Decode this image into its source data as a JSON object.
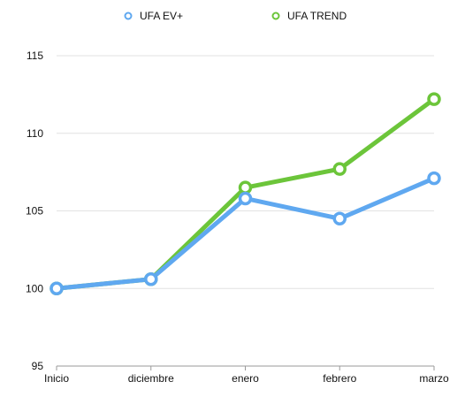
{
  "chart_data": {
    "type": "line",
    "title": "",
    "xlabel": "",
    "ylabel": "",
    "categories": [
      "Inicio",
      "diciembre",
      "enero",
      "febrero",
      "marzo"
    ],
    "ylim": [
      95,
      115
    ],
    "yticks": [
      95,
      100,
      105,
      110,
      115
    ],
    "grid": true,
    "legend_position": "top-center",
    "series": [
      {
        "name": "UFA EV+",
        "color": "#5FA8F0",
        "values": [
          100.0,
          100.6,
          105.8,
          104.5,
          107.1
        ]
      },
      {
        "name": "UFA TREND",
        "color": "#6CC53A",
        "values": [
          100.0,
          100.6,
          106.5,
          107.7,
          112.2
        ]
      }
    ]
  }
}
